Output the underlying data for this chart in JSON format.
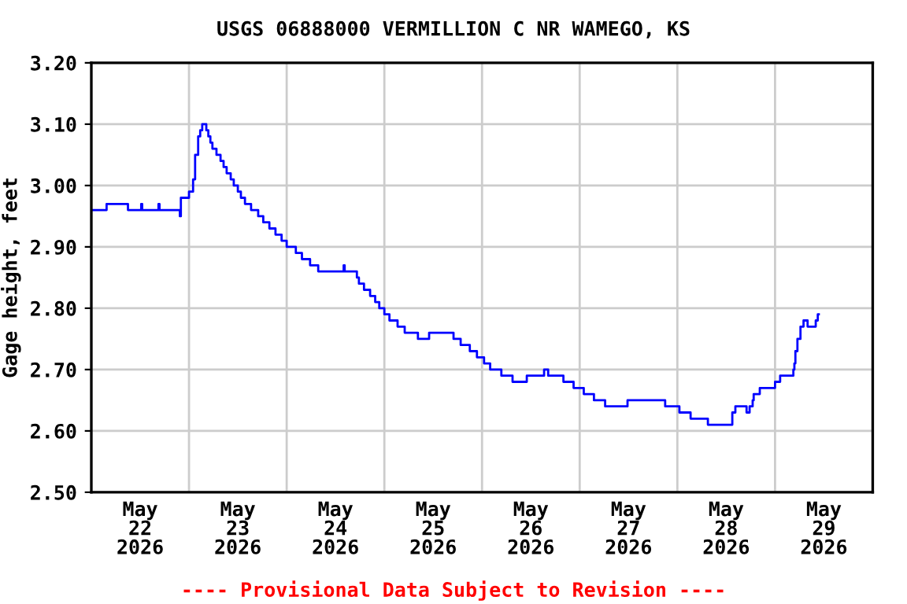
{
  "chart_data": {
    "type": "step",
    "title": "USGS 06888000 VERMILLION C NR WAMEGO, KS",
    "ylabel": "Gage height, feet",
    "annotations": [
      "---- Provisional Data Subject to Revision ----"
    ],
    "xlim": [
      "2026-05-22T00:00",
      "2026-05-30T00:00"
    ],
    "xticks": [
      {
        "value": "2026-05-22T12:00",
        "label": "May\n22\n2026"
      },
      {
        "value": "2026-05-23T12:00",
        "label": "May\n23\n2026"
      },
      {
        "value": "2026-05-24T12:00",
        "label": "May\n24\n2026"
      },
      {
        "value": "2026-05-25T12:00",
        "label": "May\n25\n2026"
      },
      {
        "value": "2026-05-26T12:00",
        "label": "May\n26\n2026"
      },
      {
        "value": "2026-05-27T12:00",
        "label": "May\n27\n2026"
      },
      {
        "value": "2026-05-28T12:00",
        "label": "May\n28\n2026"
      },
      {
        "value": "2026-05-29T12:00",
        "label": "May\n29\n2026"
      },
      {
        "value": "2026-05-23T00:00",
        "label": null
      },
      {
        "value": "2026-05-24T00:00",
        "label": null
      },
      {
        "value": "2026-05-25T00:00",
        "label": null
      },
      {
        "value": "2026-05-26T00:00",
        "label": null
      },
      {
        "value": "2026-05-27T00:00",
        "label": null
      },
      {
        "value": "2026-05-28T00:00",
        "label": null
      },
      {
        "value": "2026-05-29T00:00",
        "label": null
      }
    ],
    "ylim": [
      2.5,
      3.2
    ],
    "yticks": [
      {
        "value": 2.5,
        "label": "2.50"
      },
      {
        "value": 2.6,
        "label": "2.60"
      },
      {
        "value": 2.7,
        "label": "2.70"
      },
      {
        "value": 2.8,
        "label": "2.80"
      },
      {
        "value": 2.9,
        "label": "2.90"
      },
      {
        "value": 3.0,
        "label": "3.00"
      },
      {
        "value": 3.1,
        "label": "3.10"
      },
      {
        "value": 3.2,
        "label": "3.20"
      }
    ],
    "grid": true,
    "legend": false,
    "series": [
      {
        "color": "#0000ff",
        "x": [
          "2026-05-22T00:00",
          "2026-05-22T03:45",
          "2026-05-22T09:00",
          "2026-05-22T12:15",
          "2026-05-22T12:30",
          "2026-05-22T16:30",
          "2026-05-22T16:45",
          "2026-05-22T21:45",
          "2026-05-22T22:00",
          "2026-05-23T00:00",
          "2026-05-23T01:00",
          "2026-05-23T01:30",
          "2026-05-23T02:15",
          "2026-05-23T02:45",
          "2026-05-23T03:15",
          "2026-05-23T04:15",
          "2026-05-23T04:45",
          "2026-05-23T05:15",
          "2026-05-23T05:45",
          "2026-05-23T06:45",
          "2026-05-23T07:45",
          "2026-05-23T08:30",
          "2026-05-23T09:15",
          "2026-05-23T10:15",
          "2026-05-23T11:00",
          "2026-05-23T12:00",
          "2026-05-23T12:45",
          "2026-05-23T13:45",
          "2026-05-23T15:15",
          "2026-05-23T17:00",
          "2026-05-23T18:15",
          "2026-05-23T19:45",
          "2026-05-23T21:15",
          "2026-05-23T22:45",
          "2026-05-24T00:00",
          "2026-05-24T02:15",
          "2026-05-24T03:45",
          "2026-05-24T05:45",
          "2026-05-24T07:45",
          "2026-05-24T14:00",
          "2026-05-24T14:15",
          "2026-05-24T17:15",
          "2026-05-24T17:45",
          "2026-05-24T19:00",
          "2026-05-24T20:30",
          "2026-05-24T21:45",
          "2026-05-24T22:45",
          "2026-05-25T00:00",
          "2026-05-25T01:15",
          "2026-05-25T03:15",
          "2026-05-25T05:00",
          "2026-05-25T08:15",
          "2026-05-25T11:00",
          "2026-05-25T17:00",
          "2026-05-25T18:45",
          "2026-05-25T21:00",
          "2026-05-25T22:45",
          "2026-05-26T00:30",
          "2026-05-26T02:00",
          "2026-05-26T04:45",
          "2026-05-26T07:30",
          "2026-05-26T11:00",
          "2026-05-26T15:15",
          "2026-05-26T16:15",
          "2026-05-26T20:00",
          "2026-05-26T22:30",
          "2026-05-27T01:00",
          "2026-05-27T03:30",
          "2026-05-27T06:15",
          "2026-05-27T11:45",
          "2026-05-27T21:00",
          "2026-05-28T00:30",
          "2026-05-28T03:15",
          "2026-05-28T07:30",
          "2026-05-28T13:30",
          "2026-05-28T14:15",
          "2026-05-28T17:00",
          "2026-05-28T17:45",
          "2026-05-28T18:30",
          "2026-05-28T18:45",
          "2026-05-28T20:15",
          "2026-05-29T00:00",
          "2026-05-29T01:15",
          "2026-05-29T04:30",
          "2026-05-29T04:45",
          "2026-05-29T05:00",
          "2026-05-29T05:30",
          "2026-05-29T06:15",
          "2026-05-29T07:00",
          "2026-05-29T08:00",
          "2026-05-29T10:00",
          "2026-05-29T10:30",
          "2026-05-29T10:45"
        ],
        "values": [
          2.96,
          2.97,
          2.96,
          2.97,
          2.96,
          2.97,
          2.96,
          2.95,
          2.98,
          2.99,
          3.01,
          3.05,
          3.08,
          3.09,
          3.1,
          3.09,
          3.08,
          3.07,
          3.06,
          3.05,
          3.04,
          3.03,
          3.02,
          3.01,
          3.0,
          2.99,
          2.98,
          2.97,
          2.96,
          2.95,
          2.94,
          2.93,
          2.92,
          2.91,
          2.9,
          2.89,
          2.88,
          2.87,
          2.86,
          2.87,
          2.86,
          2.85,
          2.84,
          2.83,
          2.82,
          2.81,
          2.8,
          2.79,
          2.78,
          2.77,
          2.76,
          2.75,
          2.76,
          2.75,
          2.74,
          2.73,
          2.72,
          2.71,
          2.7,
          2.69,
          2.68,
          2.69,
          2.7,
          2.69,
          2.68,
          2.67,
          2.66,
          2.65,
          2.64,
          2.65,
          2.64,
          2.63,
          2.62,
          2.61,
          2.63,
          2.64,
          2.63,
          2.64,
          2.65,
          2.66,
          2.67,
          2.68,
          2.69,
          2.7,
          2.71,
          2.73,
          2.75,
          2.77,
          2.78,
          2.77,
          2.78,
          2.79,
          2.79
        ]
      }
    ]
  }
}
